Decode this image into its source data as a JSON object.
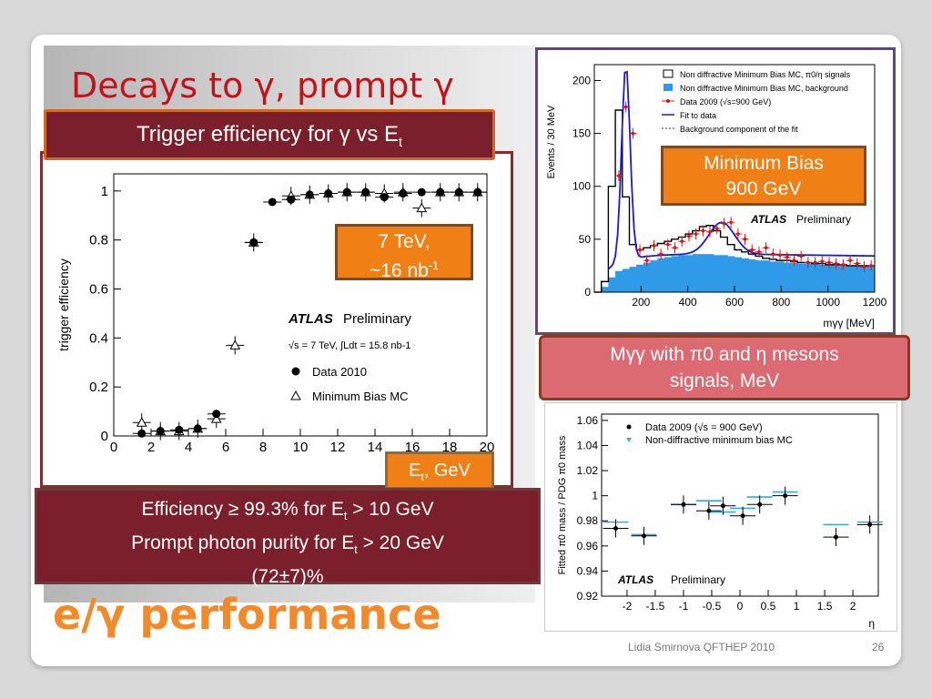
{
  "slide": {
    "title": "Decays  to γ, prompt γ",
    "trigger_box": {
      "prefix": "Trigger efficiency for γ vs E",
      "sub": "t"
    },
    "energy_box": {
      "line1": "7 TeV,",
      "line2_main": "~16 nb",
      "line2_sup": "-1"
    },
    "et_box": {
      "main": "E",
      "sub": "t",
      "rest": ", GeV"
    },
    "efficiency_box": {
      "l1a": "Efficiency ≥ 99.3% for E",
      "l1sub": "t",
      "l1b": " > 10 GeV",
      "l2a": "Prompt photon purity for E",
      "l2sub": "t",
      "l2b": " > 20 GeV",
      "l3": "(72±7)%"
    },
    "minbias_box": {
      "line1": "Minimum Bias",
      "line2": "900 GeV"
    },
    "mgg_box": {
      "line1": "Mγγ with π0 and  η mesons",
      "line2": "signals, MeV"
    },
    "footer_title": "e/γ performance",
    "credit": "Lidia Smirnova  QFTHEP 2010",
    "page_number": "26"
  },
  "chart_data": [
    {
      "type": "scatter",
      "ylabel": "trigger efficiency",
      "xlim": [
        0,
        20
      ],
      "ylim": [
        0,
        1.07
      ],
      "x_ticks": [
        "0",
        "2",
        "4",
        "6",
        "8",
        "10",
        "12",
        "14",
        "16",
        "18",
        "20"
      ],
      "y_ticks": [
        "0",
        "0.2",
        "0.4",
        "0.6",
        "0.8",
        "1"
      ],
      "legend": {
        "atlas": "ATLAS",
        "prelim": "Preliminary",
        "lumi": "√s = 7 TeV, ∫Ldt = 15.8 nb-1",
        "entries": [
          "Data 2010",
          "Minimum Bias MC"
        ]
      },
      "series": [
        {
          "name": "Data 2010",
          "x": [
            1.5,
            2.5,
            3.5,
            4.5,
            5.5,
            7.5,
            8.5,
            9.5,
            10.5,
            11.5,
            12.5,
            13.5,
            14.5,
            15.5,
            16.5,
            17.5,
            18.5,
            19.5
          ],
          "y": [
            0.01,
            0.02,
            0.025,
            0.03,
            0.09,
            0.79,
            0.955,
            0.965,
            0.985,
            0.99,
            0.995,
            0.995,
            0.975,
            0.99,
            0.995,
            0.995,
            0.995,
            0.995
          ]
        },
        {
          "name": "Minimum Bias MC",
          "x": [
            1.5,
            2.5,
            3.5,
            4.5,
            5.5,
            6.5,
            7.5,
            9.5,
            10.5,
            11.5,
            12.5,
            13.5,
            14.5,
            15.5,
            16.5,
            17.5,
            18.5,
            19.5
          ],
          "y": [
            0.055,
            0.02,
            0.02,
            0.03,
            0.07,
            0.37,
            0.79,
            0.98,
            0.985,
            0.99,
            0.995,
            0.995,
            0.99,
            0.995,
            0.93,
            0.995,
            0.995,
            0.995
          ]
        }
      ]
    },
    {
      "type": "bar",
      "ylabel": "Events /  30  MeV",
      "xlabel": "mγγ [MeV]",
      "xlim": [
        0,
        1200
      ],
      "ylim": [
        0,
        215
      ],
      "x_ticks": [
        "200",
        "400",
        "600",
        "800",
        "1000",
        "1200"
      ],
      "y_ticks": [
        "0",
        "50",
        "100",
        "150",
        "200"
      ],
      "legend_entries": [
        "Non diffractive Minimum Bias MC, π0/η signals",
        "Non diffractive Minimum Bias MC, background",
        "Data 2009 (√s=900 GeV)",
        "Fit to data",
        "Background component of the fit"
      ],
      "atlas": "ATLAS",
      "prelim": "Preliminary",
      "mc_signal": [
        0,
        10,
        100,
        172,
        90,
        45,
        40,
        42,
        44,
        46,
        48,
        50,
        52,
        55,
        58,
        62,
        63,
        58,
        52,
        45,
        40,
        38,
        36,
        34,
        32,
        31,
        30,
        30,
        29,
        28,
        28,
        27,
        27,
        26,
        26,
        26,
        25,
        25,
        25,
        25
      ],
      "mc_background": [
        0,
        5,
        14,
        20,
        22,
        24,
        26,
        28,
        30,
        32,
        33,
        34,
        35,
        35,
        36,
        36,
        36,
        35,
        35,
        34,
        33,
        32,
        31,
        30,
        30,
        29,
        29,
        28,
        28,
        27,
        27,
        27,
        26,
        26,
        26,
        26,
        25,
        25,
        25,
        25
      ],
      "data_x": [
        105,
        135,
        165,
        195,
        225,
        255,
        285,
        315,
        345,
        375,
        405,
        435,
        465,
        495,
        525,
        555,
        585,
        615,
        645,
        675,
        705,
        735,
        765,
        795,
        825,
        855,
        885,
        915,
        945,
        975,
        1005,
        1035,
        1065,
        1095,
        1125,
        1155,
        1185
      ],
      "data_y": [
        110,
        175,
        150,
        40,
        30,
        44,
        36,
        45,
        42,
        48,
        53,
        55,
        58,
        57,
        60,
        65,
        66,
        55,
        50,
        40,
        38,
        42,
        36,
        35,
        33,
        30,
        34,
        28,
        28,
        29,
        28,
        27,
        26,
        30,
        27,
        24,
        25
      ]
    },
    {
      "type": "scatter",
      "ylabel": "Fitted π0 mass / PDG π0 mass",
      "xlabel": "η",
      "xlim": [
        -2.45,
        2.45
      ],
      "ylim": [
        0.92,
        1.065
      ],
      "x_ticks": [
        "-2",
        "-1.5",
        "-1",
        "-0.5",
        "0",
        "0.5",
        "1",
        "1.5",
        "2"
      ],
      "y_ticks": [
        "0.92",
        "0.94",
        "0.96",
        "0.98",
        "1",
        "1.02",
        "1.04",
        "1.06"
      ],
      "legend_entries": [
        "Data 2009 (√s = 900 GeV)",
        "Non-diffractive minimum bias MC"
      ],
      "atlas": "ATLAS",
      "prelim": "Preliminary",
      "series": [
        {
          "name": "Data 2009 (√s = 900 GeV)",
          "x": [
            -2.2,
            -1.7,
            -1.0,
            -0.55,
            -0.3,
            0.05,
            0.35,
            0.8,
            1.7,
            2.3
          ],
          "y": [
            0.974,
            0.968,
            0.993,
            0.988,
            0.992,
            0.984,
            0.993,
            1.0,
            0.967,
            0.977
          ]
        },
        {
          "name": "Non-diffractive minimum bias MC",
          "x": [
            -2.2,
            -1.7,
            -1.0,
            -0.55,
            -0.3,
            0.05,
            0.35,
            0.8,
            1.7,
            2.3
          ],
          "y": [
            0.979,
            0.969,
            0.993,
            0.996,
            0.987,
            0.99,
            0.999,
            1.003,
            0.977,
            0.979
          ]
        }
      ]
    }
  ]
}
